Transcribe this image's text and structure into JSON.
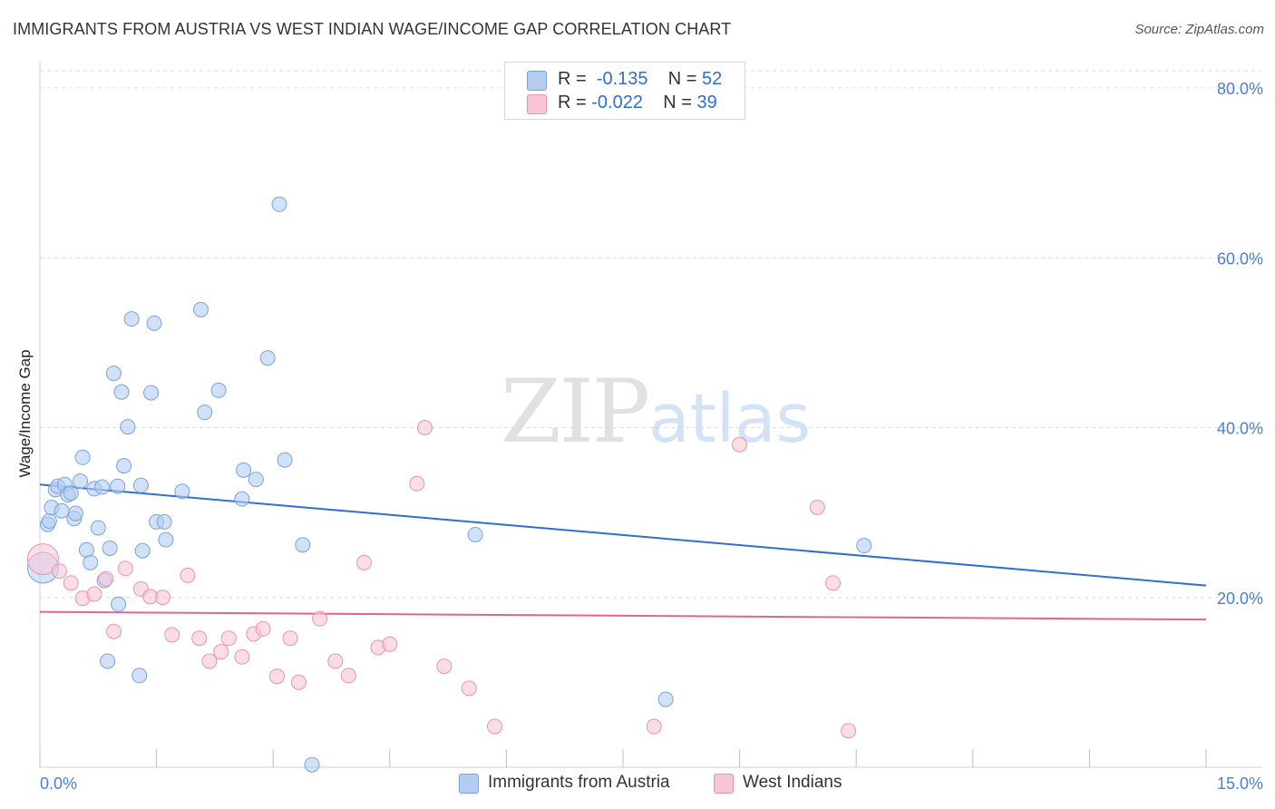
{
  "header": {
    "title": "IMMIGRANTS FROM AUSTRIA VS WEST INDIAN WAGE/INCOME GAP CORRELATION CHART",
    "source": "Source: ZipAtlas.com"
  },
  "watermark": {
    "zip": "ZIP",
    "atlas": "atlas"
  },
  "legend_top": {
    "rows": [
      {
        "r_label": "R =",
        "r_value": "-0.135",
        "n_label": "N =",
        "n_value": "52"
      },
      {
        "r_label": "R =",
        "r_value": "-0.022",
        "n_label": "N =",
        "n_value": "39"
      }
    ]
  },
  "legend_bottom": {
    "items": [
      {
        "label": "Immigrants from Austria"
      },
      {
        "label": "West Indians"
      }
    ]
  },
  "colors": {
    "blue_fill": "#b3cdf2",
    "blue_stroke": "#7aa3dc",
    "blue_line": "#2f6fd0",
    "pink_fill": "#f7c6d4",
    "pink_stroke": "#e893ad",
    "pink_line": "#e3658f"
  },
  "chart_data": {
    "type": "scatter",
    "title": "IMMIGRANTS FROM AUSTRIA VS WEST INDIAN WAGE/INCOME GAP CORRELATION CHART",
    "xlabel": "",
    "ylabel": "Wage/Income Gap",
    "xlim": [
      0,
      15
    ],
    "ylim": [
      0,
      80
    ],
    "x_ticks_labeled": [
      {
        "value": 0,
        "label": "0.0%"
      },
      {
        "value": 15,
        "label": "15.0%"
      }
    ],
    "y_ticks": [
      {
        "value": 20,
        "label": "20.0%"
      },
      {
        "value": 40,
        "label": "40.0%"
      },
      {
        "value": 60,
        "label": "60.0%"
      },
      {
        "value": 80,
        "label": "80.0%"
      }
    ],
    "grid": true,
    "legend_position": "bottom",
    "series": [
      {
        "name": "Immigrants from Austria",
        "color": "#b3cdf2",
        "R": -0.135,
        "N": 52,
        "trend": {
          "x": [
            0,
            15
          ],
          "y": [
            33.3,
            21.4
          ]
        },
        "points": [
          [
            0.04,
            23.5,
            "big"
          ],
          [
            0.1,
            28.6
          ],
          [
            0.12,
            29.0
          ],
          [
            0.15,
            30.6
          ],
          [
            0.2,
            32.7
          ],
          [
            0.23,
            33.1
          ],
          [
            0.28,
            30.2
          ],
          [
            0.32,
            33.3
          ],
          [
            0.36,
            32.1
          ],
          [
            0.4,
            32.3
          ],
          [
            0.44,
            29.3
          ],
          [
            0.46,
            29.9
          ],
          [
            0.52,
            33.7
          ],
          [
            0.55,
            36.5
          ],
          [
            0.6,
            25.6
          ],
          [
            0.65,
            24.1
          ],
          [
            0.7,
            32.8
          ],
          [
            0.75,
            28.2
          ],
          [
            0.8,
            33.0
          ],
          [
            0.83,
            22.0
          ],
          [
            0.87,
            12.5
          ],
          [
            0.9,
            25.8
          ],
          [
            0.95,
            46.4
          ],
          [
            1.0,
            33.1
          ],
          [
            1.01,
            19.2
          ],
          [
            1.05,
            44.2
          ],
          [
            1.08,
            35.5
          ],
          [
            1.13,
            40.1
          ],
          [
            1.18,
            52.8
          ],
          [
            1.28,
            10.8
          ],
          [
            1.3,
            33.2
          ],
          [
            1.32,
            25.5
          ],
          [
            1.43,
            44.1
          ],
          [
            1.47,
            52.3
          ],
          [
            1.5,
            28.9
          ],
          [
            1.6,
            28.9
          ],
          [
            1.62,
            26.8
          ],
          [
            1.83,
            32.5
          ],
          [
            2.07,
            53.9
          ],
          [
            2.12,
            41.8
          ],
          [
            2.3,
            44.4
          ],
          [
            2.6,
            31.6
          ],
          [
            2.62,
            35.0
          ],
          [
            2.78,
            33.9
          ],
          [
            2.93,
            48.2
          ],
          [
            3.08,
            66.3
          ],
          [
            3.15,
            36.2
          ],
          [
            3.38,
            26.2
          ],
          [
            3.5,
            0.3
          ],
          [
            5.6,
            27.4
          ],
          [
            8.05,
            8.0
          ],
          [
            10.6,
            26.1
          ]
        ]
      },
      {
        "name": "West Indians",
        "color": "#f7c6d4",
        "R": -0.022,
        "N": 39,
        "trend": {
          "x": [
            0,
            15
          ],
          "y": [
            18.3,
            17.4
          ]
        },
        "points": [
          [
            0.04,
            24.5,
            "big"
          ],
          [
            0.25,
            23.1
          ],
          [
            0.4,
            21.7
          ],
          [
            0.55,
            19.9
          ],
          [
            0.7,
            20.4
          ],
          [
            0.85,
            22.2
          ],
          [
            0.95,
            16.0
          ],
          [
            1.1,
            23.4
          ],
          [
            1.3,
            21.0
          ],
          [
            1.42,
            20.1
          ],
          [
            1.58,
            20.0
          ],
          [
            1.7,
            15.6
          ],
          [
            1.9,
            22.6
          ],
          [
            2.05,
            15.2
          ],
          [
            2.18,
            12.5
          ],
          [
            2.33,
            13.6
          ],
          [
            2.43,
            15.2
          ],
          [
            2.6,
            13.0
          ],
          [
            2.75,
            15.7
          ],
          [
            2.87,
            16.3
          ],
          [
            3.05,
            10.7
          ],
          [
            3.22,
            15.2
          ],
          [
            3.33,
            10.0
          ],
          [
            3.6,
            17.5
          ],
          [
            3.8,
            12.5
          ],
          [
            3.97,
            10.8
          ],
          [
            4.17,
            24.1
          ],
          [
            4.35,
            14.1
          ],
          [
            4.5,
            14.5
          ],
          [
            4.85,
            33.4
          ],
          [
            4.95,
            40.0
          ],
          [
            5.2,
            11.9
          ],
          [
            5.52,
            9.3
          ],
          [
            5.85,
            4.8
          ],
          [
            7.9,
            4.8
          ],
          [
            9.0,
            38.0
          ],
          [
            10.0,
            30.6
          ],
          [
            10.2,
            21.7
          ],
          [
            10.4,
            4.3
          ]
        ]
      }
    ]
  }
}
